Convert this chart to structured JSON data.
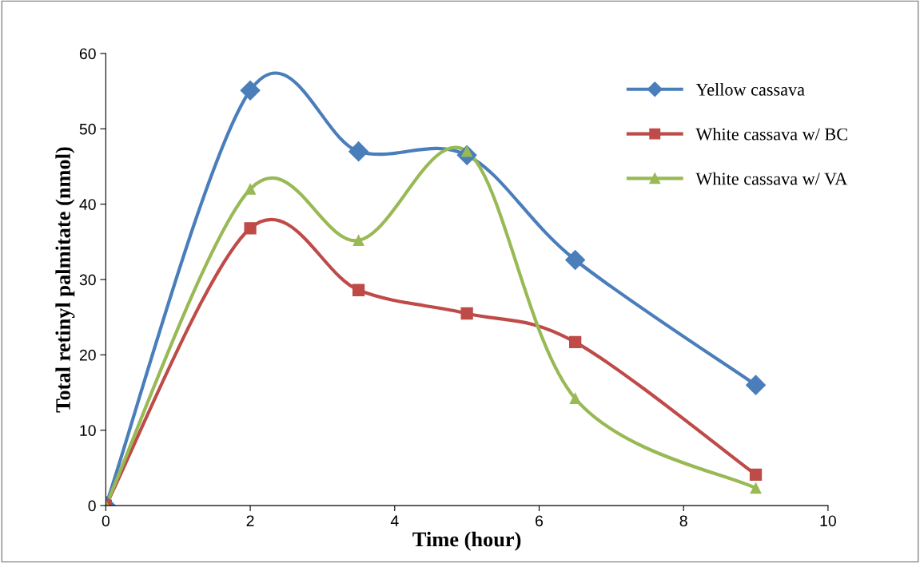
{
  "chart_data": {
    "type": "line",
    "xlabel": "Time (hour)",
    "ylabel": "Total retinyl palmitate (nmol)",
    "x": [
      0,
      2,
      3.5,
      5,
      6.5,
      9
    ],
    "series": [
      {
        "name": "Yellow cassava",
        "color": "#4a7ebb",
        "marker": "diamond",
        "values": [
          0,
          55.1,
          47,
          46.5,
          32.6,
          16
        ]
      },
      {
        "name": "White cassava w/ BC",
        "color": "#be4b48",
        "marker": "square",
        "values": [
          0,
          36.8,
          28.6,
          25.5,
          21.7,
          4.1
        ]
      },
      {
        "name": "White cassava w/ VA",
        "color": "#98b954",
        "marker": "triangle",
        "values": [
          0,
          42,
          35.2,
          47,
          14.2,
          2.3
        ]
      }
    ],
    "xlim": [
      0,
      10
    ],
    "xticks": [
      0,
      2,
      4,
      6,
      8,
      10
    ],
    "ylim": [
      0,
      60
    ],
    "yticks": [
      0,
      10,
      20,
      30,
      40,
      50,
      60
    ],
    "grid": false,
    "legend": "top right",
    "line_style": "solid"
  }
}
